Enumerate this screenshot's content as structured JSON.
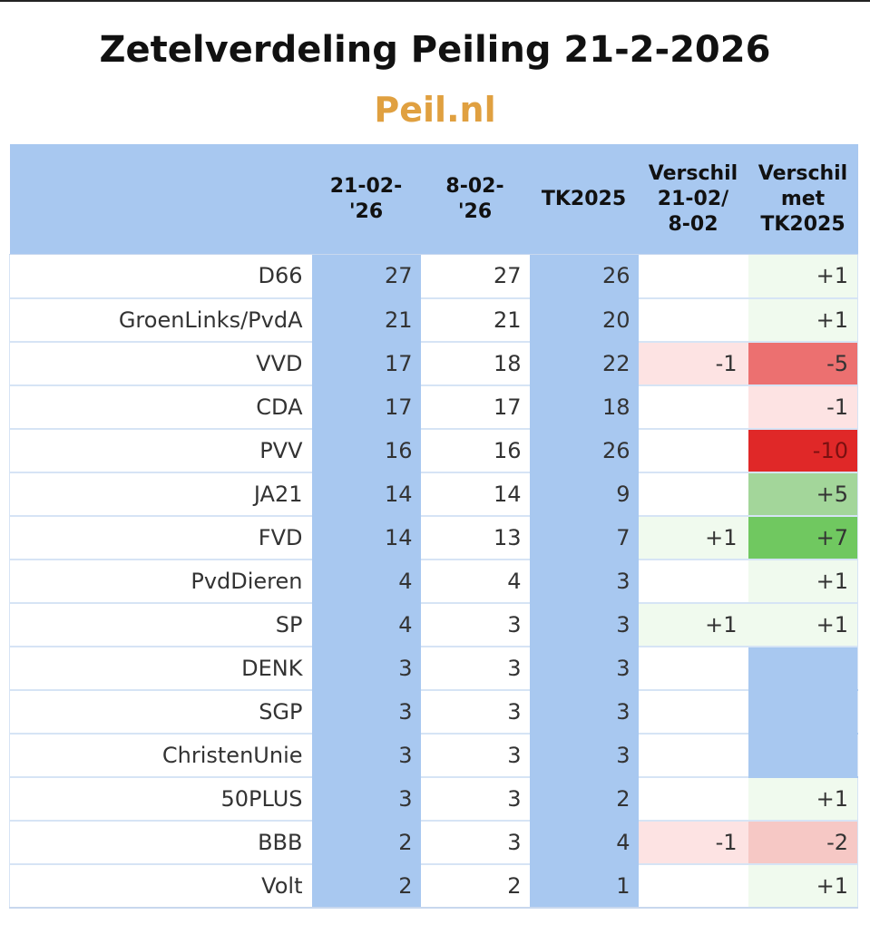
{
  "title": "Zetelverdeling Peiling 21-2-2026",
  "subtitle": "Peil.nl",
  "colors": {
    "subtitle": "#e0a040",
    "header_blue": "#a8c8f0",
    "diff_neutral": "#ffffff",
    "diff_plus1": "#f0faee",
    "diff_plus5": "#a3d69a",
    "diff_plus7": "#70c860",
    "diff_minus1": "#fde3e3",
    "diff_minus2": "#f6c8c5",
    "diff_minus5": "#ec7070",
    "diff_minus10": "#e02828",
    "empty_tk": "#a8c8f0"
  },
  "chart_data": {
    "type": "table",
    "title": "Zetelverdeling Peiling 21-2-2026",
    "subtitle": "Peil.nl",
    "columns": [
      "",
      "21-02-\n'26",
      "8-02-\n'26",
      "TK2025",
      "Verschil\n21-02/\n8-02",
      "Verschil\nmet\nTK2025"
    ],
    "rows": [
      {
        "party": "D66",
        "p1": "27",
        "p2": "27",
        "tk": "26",
        "d1": "",
        "d2": "+1"
      },
      {
        "party": "GroenLinks/PvdA",
        "p1": "21",
        "p2": "21",
        "tk": "20",
        "d1": "",
        "d2": "+1"
      },
      {
        "party": "VVD",
        "p1": "17",
        "p2": "18",
        "tk": "22",
        "d1": "-1",
        "d2": "-5"
      },
      {
        "party": "CDA",
        "p1": "17",
        "p2": "17",
        "tk": "18",
        "d1": "",
        "d2": "-1"
      },
      {
        "party": "PVV",
        "p1": "16",
        "p2": "16",
        "tk": "26",
        "d1": "",
        "d2": "-10"
      },
      {
        "party": "JA21",
        "p1": "14",
        "p2": "14",
        "tk": "9",
        "d1": "",
        "d2": "+5"
      },
      {
        "party": "FVD",
        "p1": "14",
        "p2": "13",
        "tk": "7",
        "d1": "+1",
        "d2": "+7"
      },
      {
        "party": "PvdDieren",
        "p1": "4",
        "p2": "4",
        "tk": "3",
        "d1": "",
        "d2": "+1"
      },
      {
        "party": "SP",
        "p1": "4",
        "p2": "3",
        "tk": "3",
        "d1": "+1",
        "d2": "+1"
      },
      {
        "party": "DENK",
        "p1": "3",
        "p2": "3",
        "tk": "3",
        "d1": "",
        "d2": ""
      },
      {
        "party": "SGP",
        "p1": "3",
        "p2": "3",
        "tk": "3",
        "d1": "",
        "d2": ""
      },
      {
        "party": "ChristenUnie",
        "p1": "3",
        "p2": "3",
        "tk": "3",
        "d1": "",
        "d2": ""
      },
      {
        "party": "50PLUS",
        "p1": "3",
        "p2": "3",
        "tk": "2",
        "d1": "",
        "d2": "+1"
      },
      {
        "party": "BBB",
        "p1": "2",
        "p2": "3",
        "tk": "4",
        "d1": "-1",
        "d2": "-2"
      },
      {
        "party": "Volt",
        "p1": "2",
        "p2": "2",
        "tk": "1",
        "d1": "",
        "d2": "+1"
      }
    ]
  }
}
